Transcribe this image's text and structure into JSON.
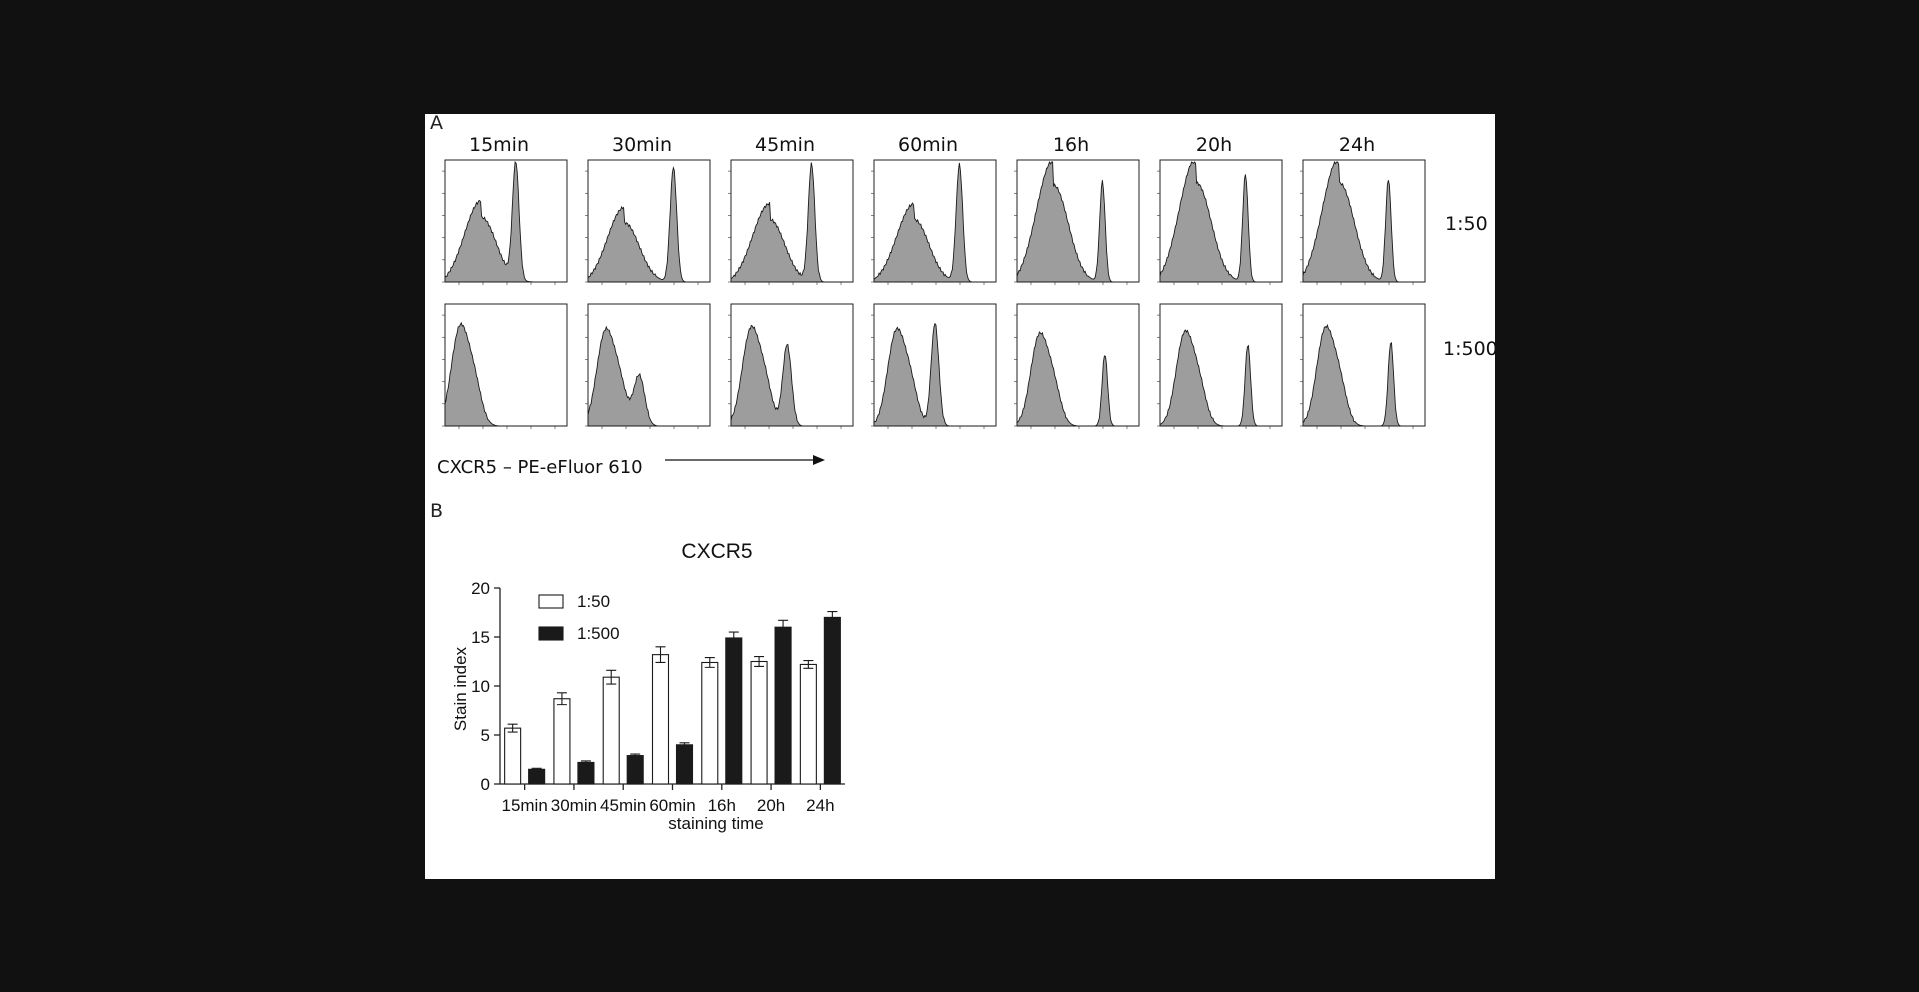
{
  "figure": {
    "panel_a_label": "A",
    "panel_b_label": "B",
    "time_points": [
      "15min",
      "30min",
      "45min",
      "60min",
      "16h",
      "20h",
      "24h"
    ],
    "dilutions": [
      "1:50",
      "1:500"
    ],
    "histogram_axis_caption": "CXCR5 – PE-eFluor 610",
    "histogram_fill": "#9d9d9d"
  },
  "chart_data": [
    {
      "type": "histogram-grid",
      "x_channel": "CXCR5 – PE-eFluor 610",
      "columns": [
        "15min",
        "30min",
        "45min",
        "60min",
        "16h",
        "20h",
        "24h"
      ],
      "rows": [
        "1:50",
        "1:500"
      ]
    },
    {
      "type": "bar",
      "title": "CXCR5",
      "xlabel": "staining time",
      "ylabel": "Stain index",
      "categories": [
        "15min",
        "30min",
        "45min",
        "60min",
        "16h",
        "20h",
        "24h"
      ],
      "ylim": [
        0,
        20
      ],
      "yticks": [
        0,
        5,
        10,
        15,
        20
      ],
      "legend_position": "top-left",
      "series": [
        {
          "name": "1:50",
          "color": "#ffffff",
          "values": [
            5.7,
            8.7,
            10.9,
            13.2,
            12.4,
            12.5,
            12.2
          ],
          "errors": [
            0.4,
            0.6,
            0.7,
            0.8,
            0.5,
            0.5,
            0.4
          ]
        },
        {
          "name": "1:500",
          "color": "#1a1a1a",
          "values": [
            1.5,
            2.2,
            2.9,
            4.0,
            14.9,
            16.0,
            17.0
          ],
          "errors": [
            0.1,
            0.15,
            0.15,
            0.2,
            0.6,
            0.7,
            0.6
          ]
        }
      ]
    }
  ]
}
